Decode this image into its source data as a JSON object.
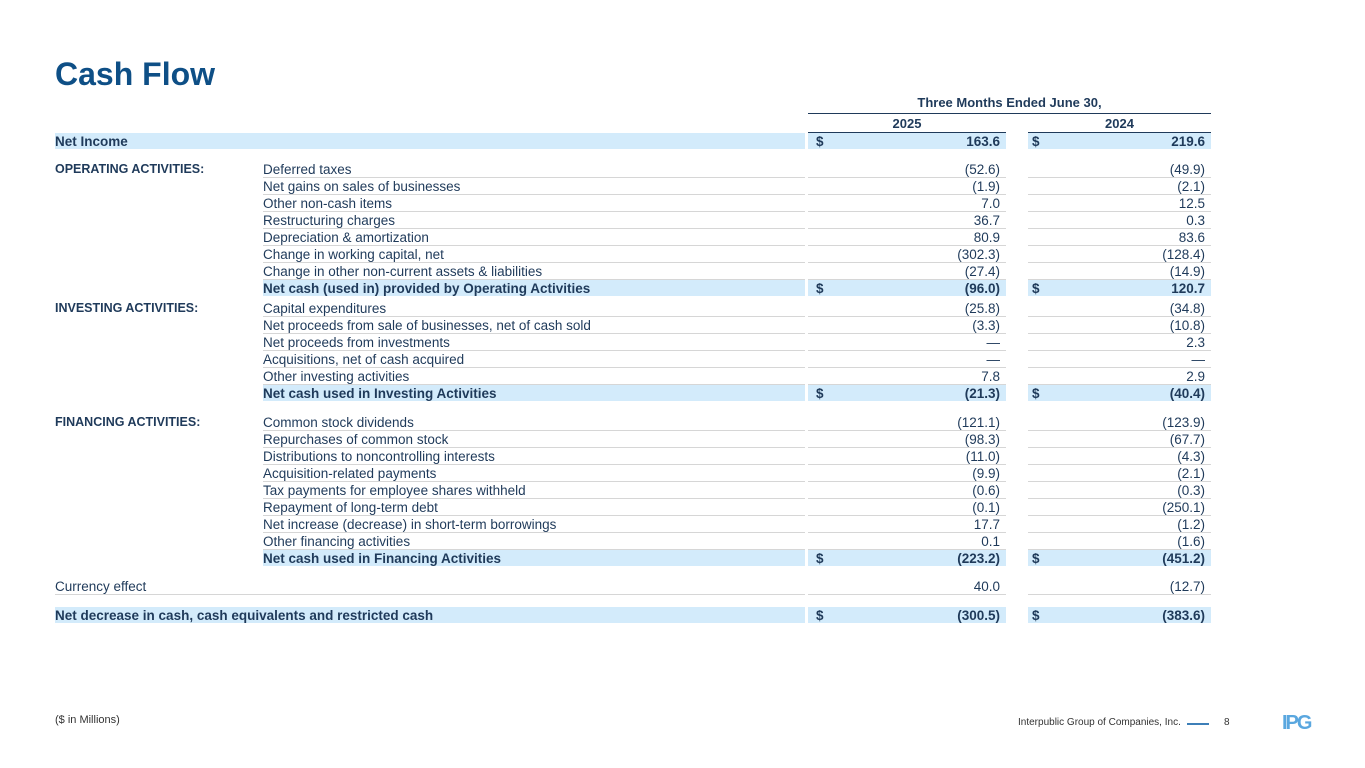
{
  "title": "Cash Flow",
  "period": "Three Months Ended June 30,",
  "years": [
    "2025",
    "2024"
  ],
  "sections": [
    {
      "rows": [
        {
          "section": "",
          "label": "Net Income",
          "v1": "163.6",
          "v2": "219.6",
          "dollar": true,
          "highlight": true,
          "full": true
        }
      ]
    },
    {
      "rows": [
        {
          "section": "OPERATING ACTIVITIES:",
          "label": "Deferred taxes",
          "v1": "(52.6)",
          "v2": "(49.9)"
        },
        {
          "label": "Net gains on sales of businesses",
          "v1": "(1.9)",
          "v2": "(2.1)"
        },
        {
          "label": "Other non-cash items",
          "v1": "7.0",
          "v2": "12.5"
        },
        {
          "label": "Restructuring charges",
          "v1": "36.7",
          "v2": "0.3"
        },
        {
          "label": "Depreciation & amortization",
          "v1": "80.9",
          "v2": "83.6"
        },
        {
          "label": "Change in working capital, net",
          "v1": "(302.3)",
          "v2": "(128.4)"
        },
        {
          "label": "Change in other non-current assets & liabilities",
          "v1": "(27.4)",
          "v2": "(14.9)"
        },
        {
          "label": "Net cash (used in) provided by Operating Activities",
          "v1": "(96.0)",
          "v2": "120.7",
          "dollar": true,
          "highlight": true
        }
      ]
    },
    {
      "rows": [
        {
          "section": "INVESTING ACTIVITIES:",
          "label": "Capital expenditures",
          "v1": "(25.8)",
          "v2": "(34.8)"
        },
        {
          "label": "Net proceeds from sale of businesses, net of cash sold",
          "v1": "(3.3)",
          "v2": "(10.8)"
        },
        {
          "label": "Net proceeds from investments",
          "v1": "—",
          "v2": "2.3"
        },
        {
          "label": "Acquisitions, net of cash acquired",
          "v1": "—",
          "v2": "—"
        },
        {
          "label": "Other investing activities",
          "v1": "7.8",
          "v2": "2.9"
        },
        {
          "label": "Net cash used in Investing Activities",
          "v1": "(21.3)",
          "v2": "(40.4)",
          "dollar": true,
          "highlight": true
        }
      ]
    },
    {
      "rows": [
        {
          "section": "FINANCING ACTIVITIES:",
          "label": "Common stock dividends",
          "v1": "(121.1)",
          "v2": "(123.9)"
        },
        {
          "label": "Repurchases of common stock",
          "v1": "(98.3)",
          "v2": "(67.7)"
        },
        {
          "label": "Distributions to noncontrolling interests",
          "v1": "(11.0)",
          "v2": "(4.3)"
        },
        {
          "label": "Acquisition-related payments",
          "v1": "(9.9)",
          "v2": "(2.1)"
        },
        {
          "label": "Tax payments for employee shares withheld",
          "v1": "(0.6)",
          "v2": "(0.3)"
        },
        {
          "label": "Repayment of long-term debt",
          "v1": "(0.1)",
          "v2": "(250.1)"
        },
        {
          "label": "Net increase (decrease) in short-term borrowings",
          "v1": "17.7",
          "v2": "(1.2)"
        },
        {
          "label": "Other financing activities",
          "v1": "0.1",
          "v2": "(1.6)"
        },
        {
          "label": "Net cash used in Financing Activities",
          "v1": "(223.2)",
          "v2": "(451.2)",
          "dollar": true,
          "highlight": true
        }
      ]
    },
    {
      "rows": [
        {
          "label": "Currency effect",
          "v1": "40.0",
          "v2": "(12.7)",
          "full": true
        }
      ]
    },
    {
      "rows": [
        {
          "label": "Net decrease in cash, cash equivalents and restricted cash",
          "v1": "(300.5)",
          "v2": "(383.6)",
          "dollar": true,
          "highlight": true,
          "full": true
        }
      ]
    }
  ],
  "currency_symbol": "$",
  "footer": {
    "units": "($ in Millions)",
    "company": "Interpublic Group of Companies, Inc.",
    "page": "8",
    "logo": "IPG"
  },
  "colors": {
    "title": "#0e4f86",
    "highlight": "#d3ebfb",
    "logo": "#5aa7df"
  }
}
